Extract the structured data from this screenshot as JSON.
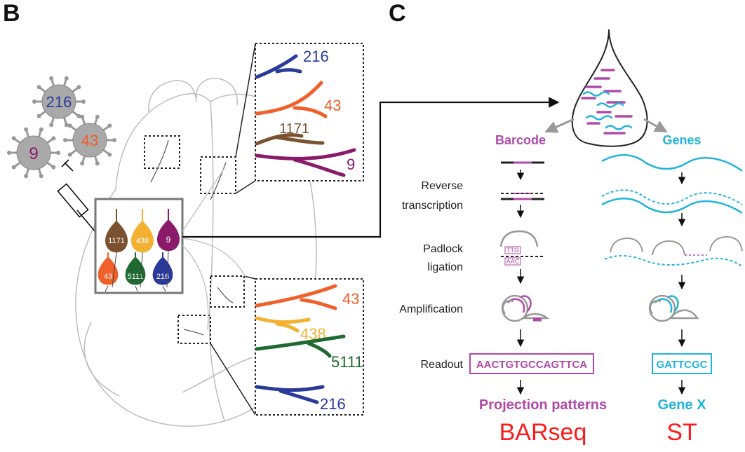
{
  "panels": {
    "left_letter": "B",
    "right_letter": "C"
  },
  "colors": {
    "blue": "#2a3a9a",
    "orange": "#f0602a",
    "brown": "#7a5230",
    "magenta": "#8a1a6a",
    "yellow": "#f4b030",
    "green": "#1e6a30",
    "barcode": "#b04aa8",
    "genes": "#22b4dc",
    "method": "#ff1a1a",
    "outline": "#bdbdbd"
  },
  "viruses": [
    {
      "label": "216",
      "color_key": "blue"
    },
    {
      "label": "43",
      "color_key": "orange"
    },
    {
      "label": "9",
      "color_key": "magenta"
    }
  ],
  "neurons": [
    {
      "label": "1171",
      "color_key": "brown"
    },
    {
      "label": "438",
      "color_key": "yellow"
    },
    {
      "label": "9",
      "color_key": "magenta"
    },
    {
      "label": "43",
      "color_key": "orange"
    },
    {
      "label": "5111",
      "color_key": "green"
    },
    {
      "label": "216",
      "color_key": "blue"
    }
  ],
  "zoom_top": [
    "216",
    "43",
    "1171",
    "9"
  ],
  "zoom_bottom": [
    "43",
    "438",
    "5111",
    "216"
  ],
  "columns": {
    "barcode_header": "Barcode",
    "genes_header": "Genes"
  },
  "steps": {
    "reverse_line1": "Reverse",
    "reverse_line2": "transcription",
    "padlock_line1": "Padlock",
    "padlock_line2": "ligation",
    "amplification": "Amplification",
    "readout": "Readout"
  },
  "padlock_codes": {
    "top": "TTG",
    "bottom": "AAC"
  },
  "readouts": {
    "barcode": "AACTGTGCCAGTTCA",
    "genes": "GATTCGC"
  },
  "outputs": {
    "barcode": "Projection patterns",
    "genes": "Gene X"
  },
  "methods": {
    "barcode": "BARseq",
    "genes": "ST"
  }
}
